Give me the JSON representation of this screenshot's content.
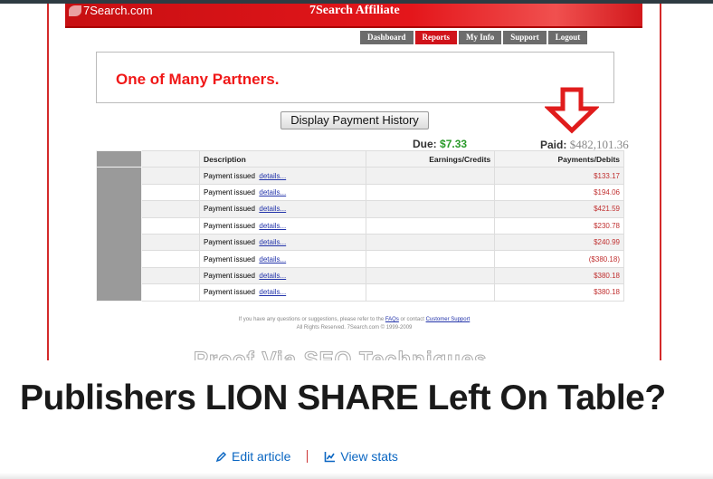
{
  "screenshot": {
    "logo": "7Search.com",
    "header_title": "7Search Affiliate",
    "nav": [
      {
        "label": "Dashboard"
      },
      {
        "label": "Reports",
        "active": true
      },
      {
        "label": "My Info"
      },
      {
        "label": "Support"
      },
      {
        "label": "Logout"
      }
    ],
    "banner": "One of Many Partners.",
    "button": "Display Payment History",
    "due_label": "Due:",
    "due_value": "$7.33",
    "paid_label": "Paid:",
    "paid_value": "$482,101.36",
    "table": {
      "headers": [
        "Description",
        "Earnings/Credits",
        "Payments/Debits"
      ],
      "rows": [
        {
          "desc": "Payment issued",
          "link": "details...",
          "credit": "",
          "debit": "$133.17"
        },
        {
          "desc": "Payment issued",
          "link": "details...",
          "credit": "",
          "debit": "$194.06"
        },
        {
          "desc": "Payment issued",
          "link": "details...",
          "credit": "",
          "debit": "$421.59"
        },
        {
          "desc": "Payment issued",
          "link": "details...",
          "credit": "",
          "debit": "$230.78"
        },
        {
          "desc": "Payment issued",
          "link": "details...",
          "credit": "",
          "debit": "$240.99"
        },
        {
          "desc": "Payment issued",
          "link": "details...",
          "credit": "",
          "debit": "($380.18)"
        },
        {
          "desc": "Payment issued",
          "link": "details...",
          "credit": "",
          "debit": "$380.18"
        },
        {
          "desc": "Payment issued",
          "link": "details...",
          "credit": "",
          "debit": "$380.18"
        }
      ]
    },
    "footer_text": "If you have any questions or suggestions, please refer to the",
    "footer_faq": "FAQs",
    "footer_mid": "or contact",
    "footer_support": "Customer Support",
    "footer_copy": "All Rights Reserved. 7Search.com © 1999-2009",
    "watermark": "Proof Via SEO Techniques"
  },
  "article": {
    "title": "Publishers LION SHARE Left On Table?",
    "edit": "Edit article",
    "stats": "View stats"
  },
  "colors": {
    "brand_red": "#d0131a",
    "link_blue": "#0a66c2"
  }
}
